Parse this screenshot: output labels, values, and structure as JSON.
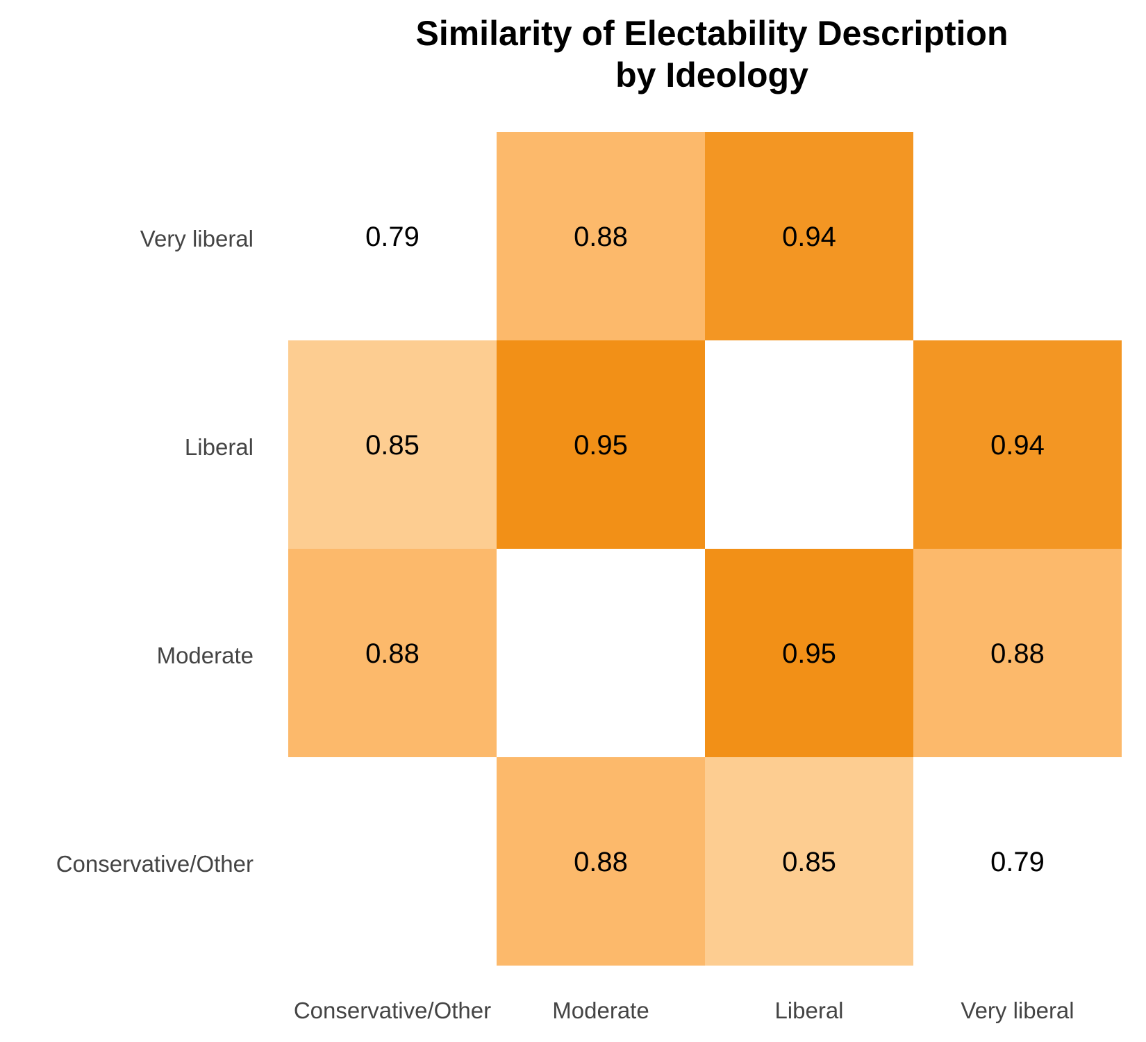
{
  "chart_data": {
    "type": "heatmap",
    "title_lines": [
      "Similarity of Electability Description",
      "by Ideology"
    ],
    "x_categories": [
      "Conservative/Other",
      "Moderate",
      "Liberal",
      "Very liberal"
    ],
    "y_categories": [
      "Conservative/Other",
      "Moderate",
      "Liberal",
      "Very liberal"
    ],
    "values": [
      [
        null,
        0.88,
        0.85,
        0.79
      ],
      [
        0.88,
        null,
        0.95,
        0.88
      ],
      [
        0.85,
        0.95,
        null,
        0.94
      ],
      [
        0.79,
        0.88,
        0.94,
        null
      ]
    ],
    "color_scale": {
      "min_value": 0.79,
      "max_value": 0.95,
      "min_color": "#ffffff",
      "low_color": "#fdcd91",
      "mid_color": "#fcb96b",
      "max_color": "#f29017"
    },
    "grid": false,
    "legend": "none"
  }
}
